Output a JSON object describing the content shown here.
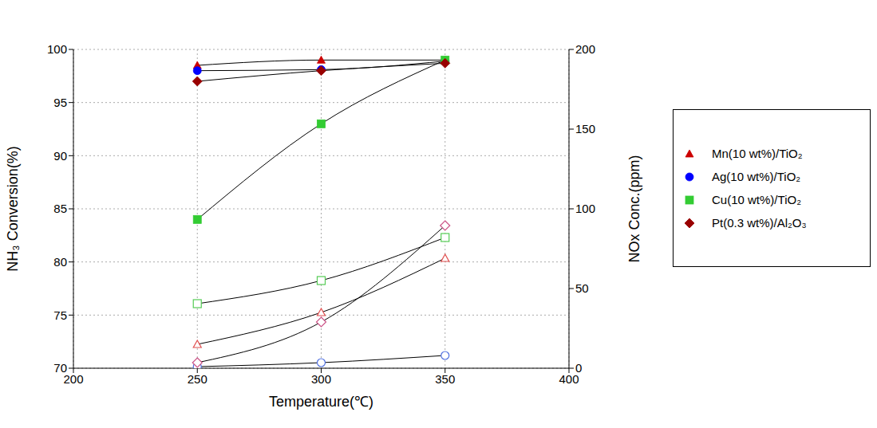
{
  "chart_data": {
    "type": "line",
    "x_label": "Temperature(℃)",
    "y_label": "NH₃ Conversion(%)",
    "y2_label": "NOx Conc.(ppm)",
    "x": [
      250,
      300,
      350
    ],
    "xlim": [
      200,
      400
    ],
    "xticks": [
      200,
      250,
      300,
      350,
      400
    ],
    "ylim": [
      70,
      100
    ],
    "yticks": [
      70,
      75,
      80,
      85,
      90,
      95,
      100
    ],
    "y2lim": [
      0,
      200
    ],
    "y2ticks": [
      0,
      50,
      100,
      150,
      200
    ],
    "grid": true,
    "legend": "right",
    "series": [
      {
        "name": "Mn(10 wt%)/TiO₂",
        "color": "#cc0000",
        "marker": "triangle",
        "values": [
          98.5,
          99.0,
          99.0
        ]
      },
      {
        "name": "Ag(10 wt%)/TiO₂",
        "color": "#0000ff",
        "marker": "circle",
        "values": [
          98.0,
          98.1,
          98.9
        ]
      },
      {
        "name": "Cu(10 wt%)/TiO₂",
        "color": "#33cc33",
        "marker": "square",
        "values": [
          84.0,
          93.0,
          99.0
        ]
      },
      {
        "name": "Pt(0.3 wt%)/Al₂O₃",
        "color": "#990000",
        "marker": "diamond",
        "values": [
          97.0,
          98.0,
          98.7
        ]
      },
      {
        "name": "Mn(10 wt%)/TiO₂",
        "color": "#e05050",
        "marker": "open-triangle",
        "axis": "y2",
        "values": [
          15,
          35,
          69
        ]
      },
      {
        "name": "Ag(10 wt%)/TiO₂",
        "color": "#5070e0",
        "marker": "open-circle",
        "axis": "y2",
        "values": [
          1,
          3.5,
          8
        ]
      },
      {
        "name": "Cu(10 wt%)/TiO₂",
        "color": "#55cc55",
        "marker": "open-square",
        "axis": "y2",
        "values": [
          40.5,
          55,
          82
        ]
      },
      {
        "name": "Pt(0.3 wt%)/Al₂O₃",
        "color": "#cc5588",
        "marker": "open-diamond",
        "axis": "y2",
        "values": [
          3.5,
          29,
          89.5
        ]
      }
    ]
  }
}
